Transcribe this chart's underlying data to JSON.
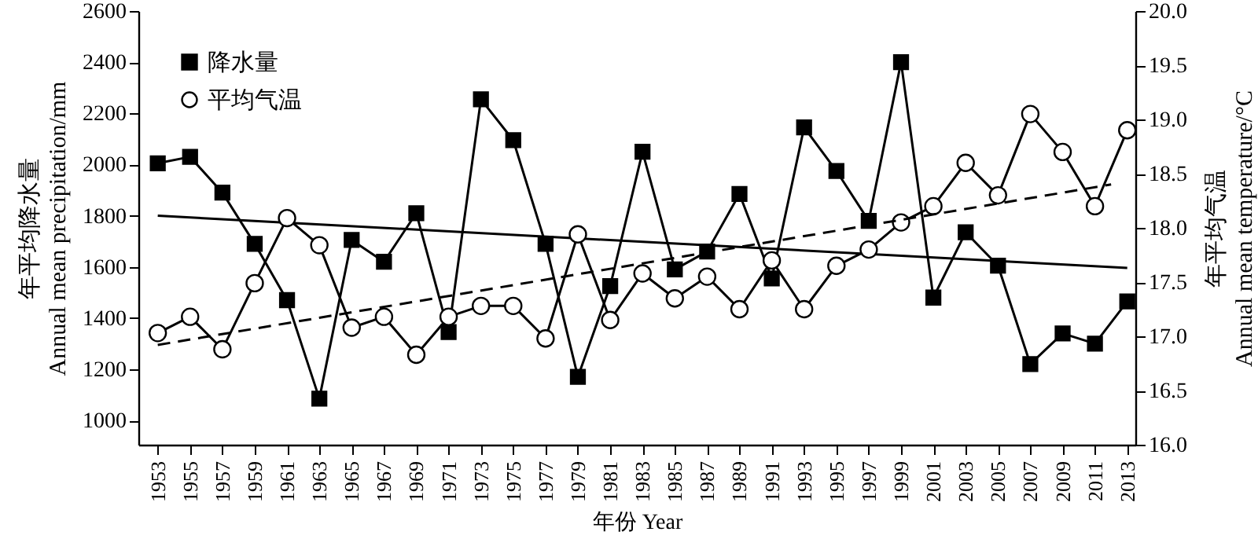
{
  "chart_data": {
    "type": "line",
    "xlabel": "年份 Year",
    "ylabel": "年平均降水量\nAnnual mean precipitation/mm",
    "y2label": "年平均气温\nAnnual mean temperature/°C",
    "x": [
      1953,
      1955,
      1957,
      1959,
      1961,
      1963,
      1965,
      1967,
      1969,
      1971,
      1973,
      1975,
      1977,
      1979,
      1981,
      1983,
      1985,
      1987,
      1989,
      1991,
      1993,
      1995,
      1997,
      1999,
      2001,
      2003,
      2005,
      2007,
      2009,
      2011,
      2013
    ],
    "series": [
      {
        "name": "降水量",
        "color": "#000000",
        "marker": "square",
        "line_style": "solid",
        "values": [
          2005,
          2030,
          1890,
          1690,
          1470,
          1085,
          1705,
          1620,
          1810,
          1345,
          2255,
          2095,
          1690,
          1170,
          1525,
          2050,
          1590,
          1660,
          1885,
          1555,
          2145,
          1975,
          1780,
          2400,
          1480,
          1735,
          1605,
          1220,
          1340,
          1300,
          1465
        ]
      },
      {
        "name": "平均气温",
        "color": "#000000",
        "marker": "circle",
        "line_style": "solid",
        "axis": "y2",
        "values": [
          17.03,
          17.18,
          16.88,
          17.49,
          18.09,
          17.84,
          17.08,
          17.18,
          16.83,
          17.18,
          17.28,
          17.28,
          16.98,
          17.94,
          17.15,
          17.58,
          17.35,
          17.55,
          17.25,
          17.7,
          17.25,
          17.65,
          17.8,
          18.05,
          18.2,
          18.6,
          18.3,
          19.05,
          18.7,
          18.2,
          18.9
        ]
      },
      {
        "type": "line",
        "color": "#000000",
        "marker": "none",
        "line_style": "solid",
        "x": [
          1953,
          2013
        ],
        "values": [
          1800,
          1596
        ]
      },
      {
        "type": "line",
        "color": "#000000",
        "marker": "none",
        "line_style": "dashed",
        "axis": "y2",
        "x": [
          1953,
          2012
        ],
        "values": [
          16.92,
          18.4
        ]
      }
    ],
    "xlim": [
      1951.8,
      2013.5
    ],
    "xticks": [
      1953,
      1955,
      1957,
      1959,
      1961,
      1963,
      1965,
      1967,
      1969,
      1971,
      1973,
      1975,
      1977,
      1979,
      1981,
      1983,
      1985,
      1987,
      1989,
      1991,
      1993,
      1995,
      1997,
      1999,
      2001,
      2003,
      2005,
      2007,
      2009,
      2011,
      2013
    ],
    "ylim": [
      905,
      2600
    ],
    "yticks": [
      1000,
      1200,
      1400,
      1600,
      1800,
      2000,
      2200,
      2400,
      2600
    ],
    "y2lim": [
      16,
      20
    ],
    "y2ticks": [
      {
        "value": 16,
        "label": "16.0"
      },
      {
        "value": 16.5,
        "label": "16.5"
      },
      {
        "value": 17,
        "label": "17.0"
      },
      {
        "value": 17.5,
        "label": "17.5"
      },
      {
        "value": 18,
        "label": "18.0"
      },
      {
        "value": 18.5,
        "label": "18.5"
      },
      {
        "value": 19,
        "label": "19.0"
      },
      {
        "value": 19.5,
        "label": "19.5"
      },
      {
        "value": 20,
        "label": "20.0"
      }
    ],
    "legend": "top left",
    "grid": false
  }
}
